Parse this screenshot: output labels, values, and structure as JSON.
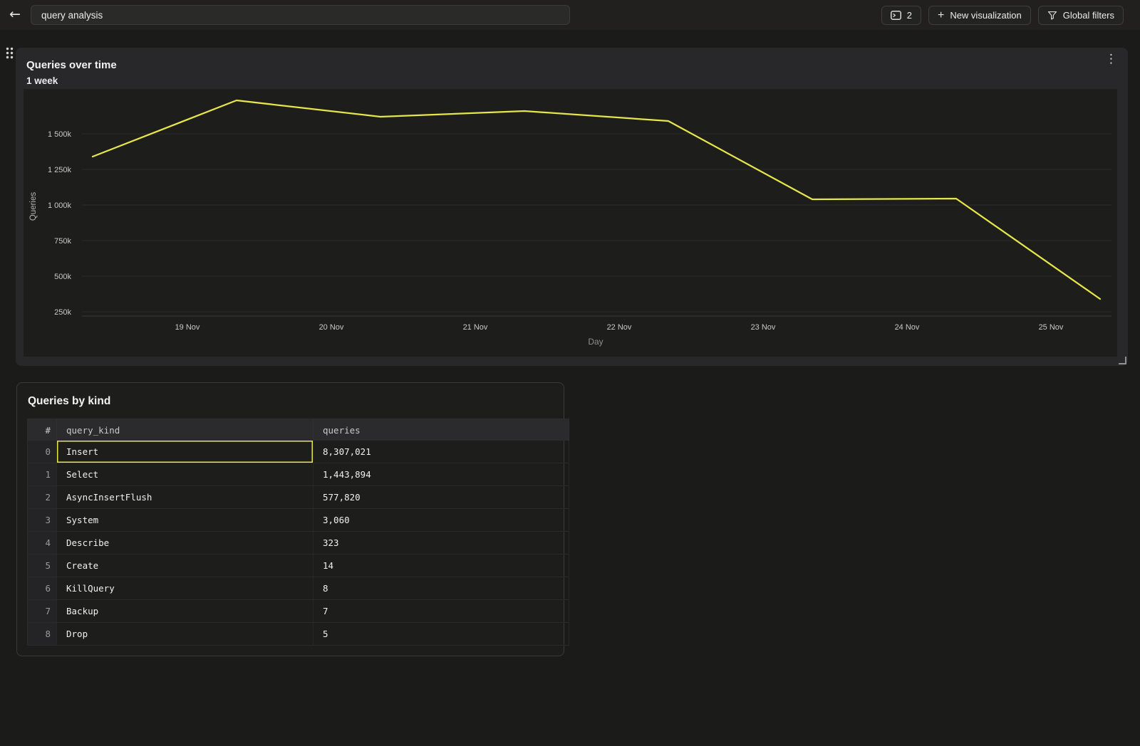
{
  "icons": {
    "back_arrow": "←",
    "plus": "+",
    "kebab": "⋮"
  },
  "colors": {
    "accent_yellow": "#e6e64a",
    "page_bg": "#1b1b19",
    "topbar_bg": "#21201e",
    "card_bg": "#28282a",
    "plot_bg": "#1d1d1b"
  },
  "topbar": {
    "title_input": {
      "value": "query analysis"
    },
    "buttons": [
      {
        "name": "console-count",
        "label": "2",
        "icon": "console-icon"
      },
      {
        "name": "new-visualization",
        "label": "New visualization",
        "icon": "plus-icon"
      },
      {
        "name": "global-filters",
        "label": "Global filters",
        "icon": "funnel-icon"
      }
    ]
  },
  "chart_card": {
    "title": "Queries over time",
    "subtitle": "1 week"
  },
  "chart_data": {
    "type": "line",
    "title": "Queries over time",
    "subtitle": "1 week",
    "xlabel": "Day",
    "ylabel": "Queries",
    "x_tick_labels": [
      "19 Nov",
      "20 Nov",
      "21 Nov",
      "22 Nov",
      "23 Nov",
      "24 Nov",
      "25 Nov"
    ],
    "y_ticks": [
      {
        "label": "1 500k",
        "value": 1500000
      },
      {
        "label": "1 250k",
        "value": 1250000
      },
      {
        "label": "1 000k",
        "value": 1000000
      },
      {
        "label": "750k",
        "value": 750000
      },
      {
        "label": "500k",
        "value": 500000
      },
      {
        "label": "250k",
        "value": 250000
      }
    ],
    "ylim": [
      220000,
      1800000
    ],
    "grid": true,
    "legend": false,
    "series": [
      {
        "name": "Queries",
        "color": "#e6e64a",
        "points": [
          {
            "x": "18 Nov",
            "y": 1340000
          },
          {
            "x": "19 Nov",
            "y": 1735000
          },
          {
            "x": "20 Nov",
            "y": 1620000
          },
          {
            "x": "21 Nov",
            "y": 1660000
          },
          {
            "x": "22 Nov",
            "y": 1590000
          },
          {
            "x": "23 Nov",
            "y": 1040000
          },
          {
            "x": "24 Nov",
            "y": 1045000
          },
          {
            "x": "25 Nov",
            "y": 340000
          }
        ]
      }
    ]
  },
  "table_card": {
    "title": "Queries by kind",
    "columns": [
      {
        "key": "index",
        "label": "#"
      },
      {
        "key": "query_kind",
        "label": "query_kind"
      },
      {
        "key": "queries",
        "label": "queries"
      }
    ],
    "rows": [
      {
        "index": "0",
        "query_kind": "Insert",
        "queries": "8,307,021"
      },
      {
        "index": "1",
        "query_kind": "Select",
        "queries": "1,443,894"
      },
      {
        "index": "2",
        "query_kind": "AsyncInsertFlush",
        "queries": "577,820"
      },
      {
        "index": "3",
        "query_kind": "System",
        "queries": "3,060"
      },
      {
        "index": "4",
        "query_kind": "Describe",
        "queries": "323"
      },
      {
        "index": "5",
        "query_kind": "Create",
        "queries": "14"
      },
      {
        "index": "6",
        "query_kind": "KillQuery",
        "queries": "8"
      },
      {
        "index": "7",
        "query_kind": "Backup",
        "queries": "7"
      },
      {
        "index": "8",
        "query_kind": "Drop",
        "queries": "5"
      }
    ],
    "selected_cell": {
      "row_index": 0,
      "column_key": "query_kind"
    }
  }
}
